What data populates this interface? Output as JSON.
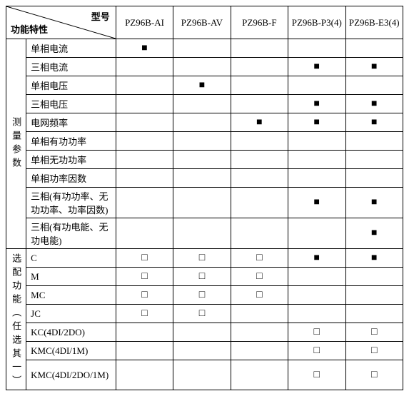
{
  "header": {
    "diag_top": "型号",
    "diag_bottom": "功能特性",
    "models": [
      "PZ96B-AI",
      "PZ96B-AV",
      "PZ96B-F",
      "PZ96B-P3(4)",
      "PZ96B-E3(4)"
    ]
  },
  "groups": [
    {
      "label": "测量参数",
      "rows": [
        {
          "label": "单相电流",
          "cells": [
            "■",
            "",
            "",
            "",
            ""
          ]
        },
        {
          "label": "三相电流",
          "cells": [
            "",
            "",
            "",
            "■",
            "■"
          ]
        },
        {
          "label": "单相电压",
          "cells": [
            "",
            "■",
            "",
            "",
            ""
          ]
        },
        {
          "label": "三相电压",
          "cells": [
            "",
            "",
            "",
            "■",
            "■"
          ]
        },
        {
          "label": "电网频率",
          "cells": [
            "",
            "",
            "■",
            "■",
            "■"
          ]
        },
        {
          "label": "单相有功功率",
          "cells": [
            "",
            "",
            "",
            "",
            ""
          ]
        },
        {
          "label": "单相无功功率",
          "cells": [
            "",
            "",
            "",
            "",
            ""
          ]
        },
        {
          "label": "单相功率因数",
          "cells": [
            "",
            "",
            "",
            "",
            ""
          ]
        },
        {
          "label": "三相(有功功率、无功功率、功率因数)",
          "cells": [
            "",
            "",
            "",
            "■",
            "■"
          ],
          "tall": true
        },
        {
          "label": "三相(有功电能、无功电能)",
          "cells": [
            "",
            "",
            "",
            "",
            "■"
          ],
          "tall": true
        }
      ]
    },
    {
      "label": "选配功能（任选其一）",
      "rows": [
        {
          "label": "C",
          "cells": [
            "□",
            "□",
            "□",
            "■",
            "■"
          ]
        },
        {
          "label": "M",
          "cells": [
            "□",
            "□",
            "□",
            "",
            ""
          ]
        },
        {
          "label": "MC",
          "cells": [
            "□",
            "□",
            "□",
            "",
            ""
          ]
        },
        {
          "label": "JC",
          "cells": [
            "□",
            "□",
            "",
            "",
            ""
          ]
        },
        {
          "label": "KC(4DI/2DO)",
          "cells": [
            "",
            "",
            "",
            "□",
            "□"
          ]
        },
        {
          "label": "KMC(4DI/1M)",
          "cells": [
            "",
            "",
            "",
            "□",
            "□"
          ]
        },
        {
          "label": "KMC(4DI/2DO/1M)",
          "cells": [
            "",
            "",
            "",
            "□",
            "□"
          ],
          "tall": true
        }
      ]
    }
  ],
  "style": {
    "filled_mark": "■",
    "empty_mark": "□",
    "border_color": "#000000",
    "text_color": "#000000",
    "background_color": "#ffffff",
    "font_family": "SimSun",
    "base_font_size": 13
  }
}
